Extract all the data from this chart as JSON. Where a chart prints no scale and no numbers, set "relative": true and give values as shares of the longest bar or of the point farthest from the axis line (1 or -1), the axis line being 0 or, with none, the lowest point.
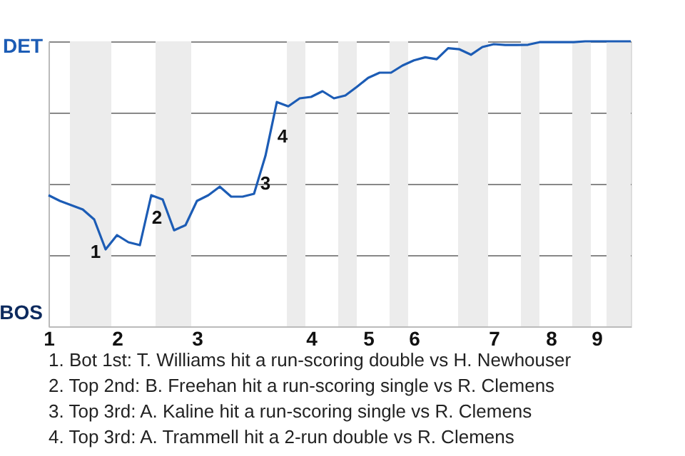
{
  "chart_data": {
    "type": "line",
    "relative": true,
    "categories": [
      "1",
      null,
      null,
      null,
      null,
      null,
      "2",
      null,
      null,
      null,
      null,
      null,
      null,
      "3",
      null,
      null,
      null,
      null,
      null,
      null,
      null,
      null,
      null,
      "4",
      null,
      null,
      null,
      null,
      "5",
      null,
      null,
      null,
      "6",
      null,
      null,
      null,
      null,
      null,
      null,
      "7",
      null,
      null,
      null,
      null,
      "8",
      null,
      null,
      null,
      "9",
      null,
      null,
      null
    ],
    "series": [
      {
        "color": "#1c5cb5",
        "values": [
          0.46,
          0.44,
          0.425,
          0.41,
          0.375,
          0.27,
          0.32,
          0.295,
          0.285,
          0.46,
          0.445,
          0.337,
          0.355,
          0.44,
          0.46,
          0.49,
          0.455,
          0.455,
          0.465,
          0.598,
          0.787,
          0.772,
          0.8,
          0.805,
          0.825,
          0.8,
          0.81,
          0.84,
          0.872,
          0.89,
          0.89,
          0.915,
          0.933,
          0.944,
          0.937,
          0.976,
          0.972,
          0.953,
          0.98,
          0.99,
          0.987,
          0.987,
          0.988,
          0.997,
          0.997,
          0.997,
          0.997,
          1.0,
          1.0,
          1.0,
          1.0,
          1.0
        ]
      }
    ],
    "grid": "y",
    "annotations": [
      "DET",
      "BOS",
      "1",
      "2",
      "3",
      "4",
      "1. Bot 1st: T. Williams hit a run-scoring double vs H. Newhouser",
      "2. Top 2nd: B. Freehan hit a run-scoring single vs R. Clemens",
      "3. Top 3rd: A. Kaline hit a run-scoring single vs R. Clemens",
      "4. Top 3rd: A. Trammell hit a 2-run double vs R. Clemens"
    ]
  }
}
